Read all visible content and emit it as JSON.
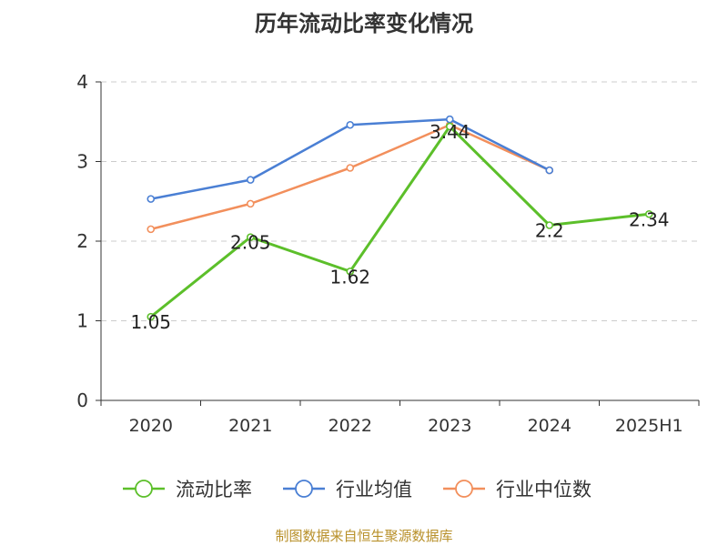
{
  "chart_data": {
    "type": "line",
    "title": "历年流动比率变化情况",
    "categories": [
      "2020",
      "2021",
      "2022",
      "2023",
      "2024",
      "2025H1"
    ],
    "ylim": [
      0,
      4
    ],
    "yticks": [
      "0",
      "1",
      "2",
      "3",
      "4"
    ],
    "grid": true,
    "legend_position": "bottom",
    "series": [
      {
        "name": "流动比率",
        "color": "#5cbf2a",
        "values": [
          1.05,
          2.05,
          1.62,
          3.44,
          2.2,
          2.34
        ],
        "labels": [
          "1.05",
          "2.05",
          "1.62",
          "3.44",
          "2.2",
          "2.34"
        ]
      },
      {
        "name": "行业均值",
        "color": "#4a7fd4",
        "values": [
          2.53,
          2.77,
          3.46,
          3.53,
          2.89,
          null
        ]
      },
      {
        "name": "行业中位数",
        "color": "#f28f5c",
        "values": [
          2.15,
          2.47,
          2.92,
          3.46,
          2.89,
          null
        ]
      }
    ]
  },
  "footer": {
    "source": "制图数据来自恒生聚源数据库"
  }
}
